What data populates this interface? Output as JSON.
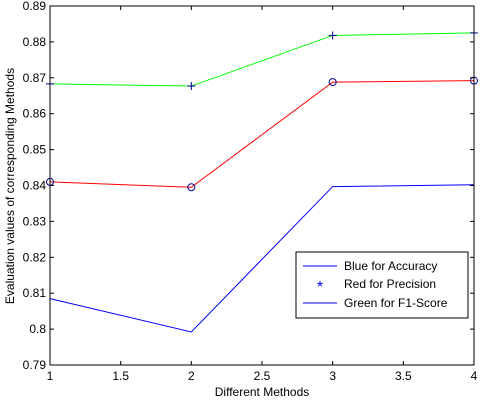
{
  "chart_data": {
    "type": "line",
    "title": "",
    "xlabel": "Different Methods",
    "ylabel": "Evaluation values of corresponding Methods",
    "xlim": [
      1,
      4
    ],
    "ylim": [
      0.79,
      0.89
    ],
    "xticks": [
      "1",
      "1.5",
      "2",
      "2.5",
      "3",
      "3.5",
      "4"
    ],
    "yticks": [
      "0.79",
      "0.8",
      "0.81",
      "0.82",
      "0.83",
      "0.84",
      "0.85",
      "0.86",
      "0.87",
      "0.88",
      "0.89"
    ],
    "grid": false,
    "legend_position": "lower-right",
    "x": [
      1,
      2,
      3,
      4
    ],
    "series": [
      {
        "name": "Blue for Accuracy",
        "color": "#0000ff",
        "marker": "",
        "values": [
          0.8085,
          0.7992,
          0.8397,
          0.8402
        ]
      },
      {
        "name": "Red for Precision",
        "color": "#ff0000",
        "marker": "o",
        "values": [
          0.841,
          0.8395,
          0.8688,
          0.8692
        ]
      },
      {
        "name": "Green for F1-Score",
        "color": "#00ff00",
        "marker": "+",
        "values": [
          0.8683,
          0.8677,
          0.8818,
          0.8825
        ]
      }
    ],
    "legend": [
      {
        "label": "Blue for Accuracy",
        "line_color": "#0000ff",
        "symbol": ""
      },
      {
        "label": "Red for Precision",
        "line_color": "",
        "symbol": "*",
        "symbol_color": "#0000ff"
      },
      {
        "label": "Green for F1-Score",
        "line_color": "#0000ff",
        "symbol": ""
      }
    ],
    "marker_color": "#00008b"
  }
}
